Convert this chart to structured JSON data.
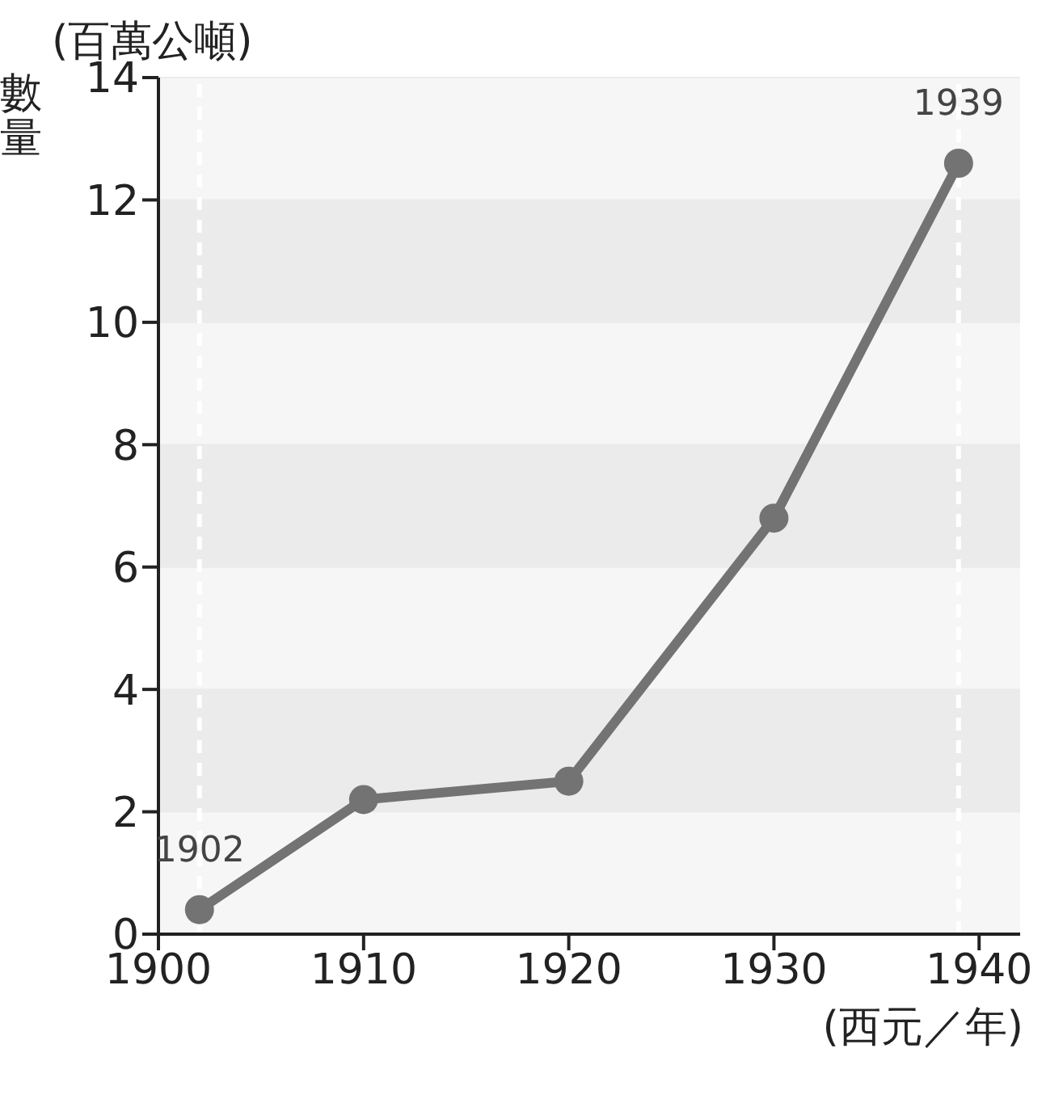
{
  "chart_data": {
    "type": "line",
    "subtitle": "(百萬公噸)",
    "ylabel": "數量",
    "xlabel": "(西元／年)",
    "x": [
      1902,
      1910,
      1920,
      1930,
      1939
    ],
    "series": [
      {
        "color": "#737373",
        "values": [
          0.4,
          2.2,
          2.5,
          6.8,
          12.6
        ]
      }
    ],
    "xlim": [
      1900,
      1942
    ],
    "xticks": [
      1900,
      1910,
      1920,
      1930,
      1940
    ],
    "ylim": [
      0,
      14
    ],
    "yticks": [
      0,
      2,
      4,
      6,
      8,
      10,
      12,
      14
    ],
    "grid": "y",
    "marker": "circle",
    "line_style": "solid",
    "ref_lines": [
      {
        "axis": "x",
        "value": 1902,
        "color": "#ffffff",
        "line_style": "dashed"
      },
      {
        "axis": "x",
        "value": 1939,
        "color": "#ffffff",
        "line_style": "dashed"
      }
    ],
    "annotations": [
      {
        "text": "1902",
        "x": 1902,
        "y": 0.4
      },
      {
        "text": "1939",
        "x": 1939,
        "y": 12.6
      }
    ]
  }
}
